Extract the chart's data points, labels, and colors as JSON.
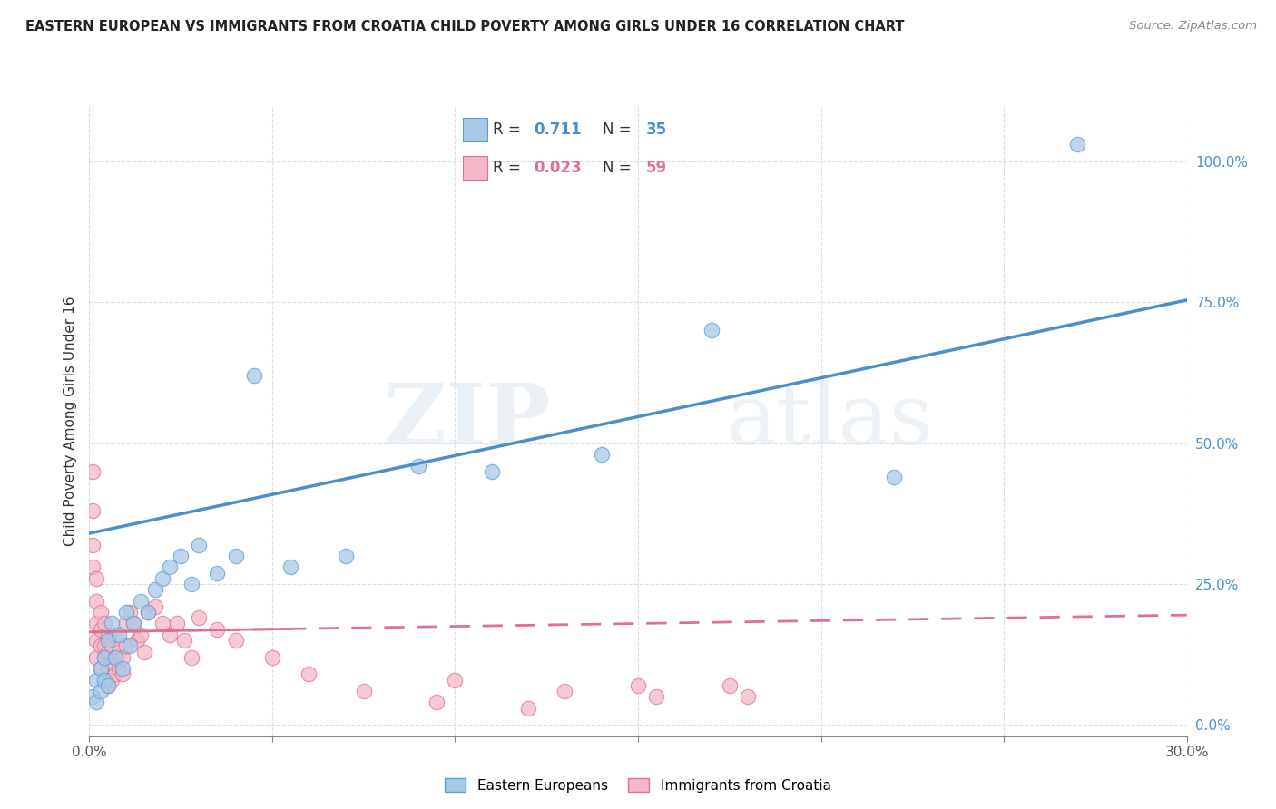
{
  "title": "EASTERN EUROPEAN VS IMMIGRANTS FROM CROATIA CHILD POVERTY AMONG GIRLS UNDER 16 CORRELATION CHART",
  "source": "Source: ZipAtlas.com",
  "ylabel": "Child Poverty Among Girls Under 16",
  "xlim": [
    0.0,
    0.3
  ],
  "ylim": [
    -0.02,
    1.1
  ],
  "xticks": [
    0.0,
    0.05,
    0.1,
    0.15,
    0.2,
    0.25,
    0.3
  ],
  "xtick_labels": [
    "0.0%",
    "",
    "",
    "",
    "",
    "",
    "30.0%"
  ],
  "ytick_labels": [
    "0.0%",
    "25.0%",
    "50.0%",
    "75.0%",
    "100.0%"
  ],
  "yticks": [
    0.0,
    0.25,
    0.5,
    0.75,
    1.0
  ],
  "blue_R": "0.711",
  "blue_N": "35",
  "pink_R": "0.023",
  "pink_N": "59",
  "blue_color": "#a8c8e8",
  "pink_color": "#f4b8c8",
  "blue_edge_color": "#5a9fd4",
  "pink_edge_color": "#e07090",
  "blue_line_color": "#4a8fcc",
  "pink_line_color": "#e07090",
  "watermark_zip": "ZIP",
  "watermark_atlas": "atlas",
  "background_color": "#ffffff",
  "grid_color": "#dddddd",
  "blue_line_intercept": 0.34,
  "blue_line_slope": 1.38,
  "pink_line_intercept": 0.165,
  "pink_line_slope": 0.1,
  "blue_scatter_x": [
    0.001,
    0.002,
    0.002,
    0.003,
    0.003,
    0.004,
    0.004,
    0.005,
    0.005,
    0.006,
    0.007,
    0.008,
    0.009,
    0.01,
    0.011,
    0.012,
    0.014,
    0.016,
    0.018,
    0.02,
    0.022,
    0.025,
    0.028,
    0.03,
    0.035,
    0.04,
    0.045,
    0.055,
    0.07,
    0.09,
    0.11,
    0.14,
    0.17,
    0.22,
    0.27
  ],
  "blue_scatter_y": [
    0.05,
    0.08,
    0.04,
    0.1,
    0.06,
    0.12,
    0.08,
    0.15,
    0.07,
    0.18,
    0.12,
    0.16,
    0.1,
    0.2,
    0.14,
    0.18,
    0.22,
    0.2,
    0.24,
    0.26,
    0.28,
    0.3,
    0.25,
    0.32,
    0.27,
    0.3,
    0.62,
    0.28,
    0.3,
    0.46,
    0.45,
    0.48,
    0.7,
    0.44,
    1.03
  ],
  "pink_scatter_x": [
    0.001,
    0.001,
    0.001,
    0.001,
    0.002,
    0.002,
    0.002,
    0.002,
    0.002,
    0.003,
    0.003,
    0.003,
    0.003,
    0.004,
    0.004,
    0.004,
    0.004,
    0.005,
    0.005,
    0.005,
    0.005,
    0.006,
    0.006,
    0.006,
    0.007,
    0.007,
    0.007,
    0.008,
    0.008,
    0.009,
    0.009,
    0.01,
    0.01,
    0.011,
    0.012,
    0.013,
    0.014,
    0.015,
    0.016,
    0.018,
    0.02,
    0.022,
    0.024,
    0.026,
    0.028,
    0.03,
    0.035,
    0.04,
    0.05,
    0.06,
    0.075,
    0.095,
    0.12,
    0.15,
    0.18,
    0.1,
    0.13,
    0.155,
    0.175
  ],
  "pink_scatter_y": [
    0.45,
    0.38,
    0.32,
    0.28,
    0.26,
    0.22,
    0.18,
    0.15,
    0.12,
    0.2,
    0.17,
    0.14,
    0.1,
    0.18,
    0.14,
    0.12,
    0.08,
    0.16,
    0.13,
    0.1,
    0.07,
    0.14,
    0.11,
    0.08,
    0.16,
    0.12,
    0.09,
    0.13,
    0.1,
    0.12,
    0.09,
    0.14,
    0.18,
    0.2,
    0.18,
    0.15,
    0.16,
    0.13,
    0.2,
    0.21,
    0.18,
    0.16,
    0.18,
    0.15,
    0.12,
    0.19,
    0.17,
    0.15,
    0.12,
    0.09,
    0.06,
    0.04,
    0.03,
    0.07,
    0.05,
    0.08,
    0.06,
    0.05,
    0.07
  ]
}
